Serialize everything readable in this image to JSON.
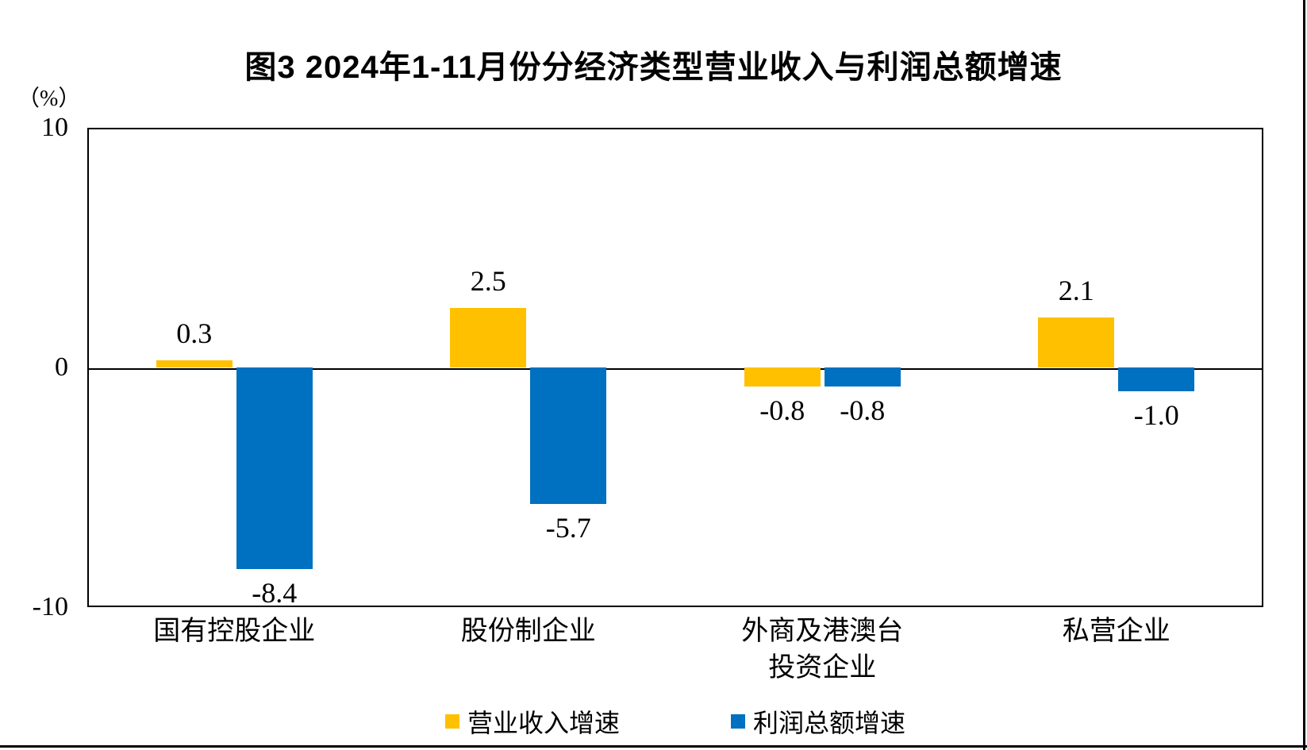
{
  "page": {
    "background": "#ffffff",
    "line_color": "#000000"
  },
  "chart_data": {
    "type": "bar",
    "title": "图3 2024年1-11月份分经济类型营业收入与利润总额增速",
    "unit_label": "（%）",
    "categories": [
      "国有控股企业",
      "股份制企业",
      "外商及港澳台\n投资企业",
      "私营企业"
    ],
    "series": [
      {
        "name": "营业收入增速",
        "color": "#FFC000",
        "values": [
          0.3,
          2.5,
          -0.8,
          2.1
        ]
      },
      {
        "name": "利润总额增速",
        "color": "#0070C0",
        "values": [
          -8.4,
          -5.7,
          -0.8,
          -1.0
        ]
      }
    ],
    "data_labels": [
      [
        "0.3",
        "2.5",
        "-0.8",
        "2.1"
      ],
      [
        "-8.4",
        "-5.7",
        "-0.8",
        "-1.0"
      ]
    ],
    "ylim": [
      -10,
      10
    ],
    "yticks": [
      "10",
      "0",
      "-10"
    ],
    "grid": false,
    "legend_position": "bottom"
  }
}
